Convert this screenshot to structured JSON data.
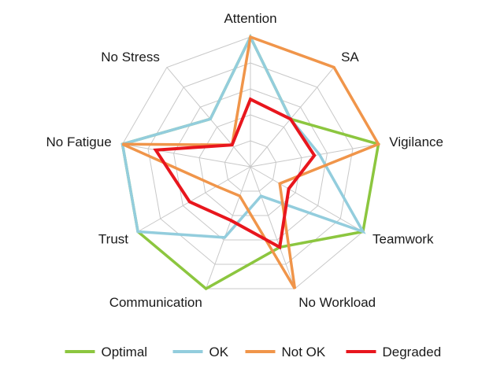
{
  "chart_data": {
    "type": "radar",
    "axes": [
      "Attention",
      "SA",
      "Vigilance",
      "Teamwork",
      "No Workload",
      "Communication",
      "Trust",
      "No Fatigue",
      "No Stress"
    ],
    "rmax": 5,
    "rings": 5,
    "grid": true,
    "legend_position": "bottom",
    "series": [
      {
        "name": "Optimal",
        "color": "#8cc63f",
        "values": [
          5,
          2.4,
          5,
          5,
          3.3,
          5,
          5,
          5,
          2.4
        ]
      },
      {
        "name": "OK",
        "color": "#93cddd",
        "values": [
          5,
          2.4,
          2.7,
          5,
          1.2,
          2.9,
          5,
          5,
          2.4
        ]
      },
      {
        "name": "Not OK",
        "color": "#f0954a",
        "values": [
          5,
          5,
          5,
          1.3,
          5,
          1.2,
          1.5,
          5,
          1.1
        ]
      },
      {
        "name": "Degraded",
        "color": "#e8161d",
        "values": [
          2.6,
          2.4,
          2.5,
          1.7,
          3.3,
          2.2,
          2.7,
          3.7,
          1.1
        ]
      }
    ]
  }
}
